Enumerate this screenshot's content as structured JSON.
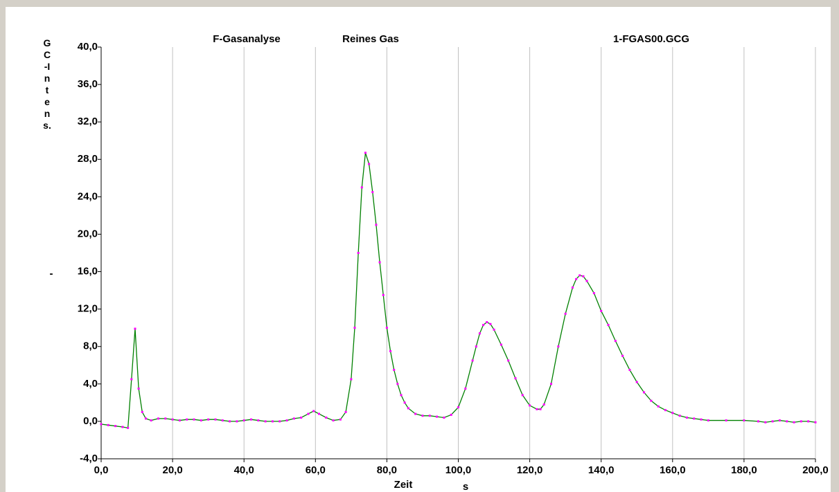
{
  "chart_data": {
    "type": "line",
    "title": "F-Gasanalyse",
    "subtitle": "Reines Gas",
    "file": "1-FGAS00.GCG",
    "y_label": "GC-Intens.",
    "y_unit": "-",
    "x_label": "Zeit",
    "x_unit": "s",
    "color": "#008000",
    "marker_color": "#ff00ff",
    "grid": "vertical",
    "xlim": [
      0,
      200
    ],
    "ylim": [
      -4,
      40
    ],
    "xticks": [
      {
        "value": 0,
        "label": "0,0"
      },
      {
        "value": 20,
        "label": "20,0"
      },
      {
        "value": 40,
        "label": "40,0"
      },
      {
        "value": 60,
        "label": "60,0"
      },
      {
        "value": 80,
        "label": "80,0"
      },
      {
        "value": 100,
        "label": "100,0"
      },
      {
        "value": 120,
        "label": "120,0"
      },
      {
        "value": 140,
        "label": "140,0"
      },
      {
        "value": 160,
        "label": "160,0"
      },
      {
        "value": 180,
        "label": "180,0"
      },
      {
        "value": 200,
        "label": "200,0"
      }
    ],
    "yticks": [
      {
        "value": -4,
        "label": "-4,0"
      },
      {
        "value": 0,
        "label": "0,0"
      },
      {
        "value": 4,
        "label": "4,0"
      },
      {
        "value": 8,
        "label": "8,0"
      },
      {
        "value": 12,
        "label": "12,0"
      },
      {
        "value": 16,
        "label": "16,0"
      },
      {
        "value": 20,
        "label": "20,0"
      },
      {
        "value": 24,
        "label": "24,0"
      },
      {
        "value": 28,
        "label": "28,0"
      },
      {
        "value": 32,
        "label": "32,0"
      },
      {
        "value": 36,
        "label": "36,0"
      },
      {
        "value": 40,
        "label": "40,0"
      }
    ],
    "x": [
      0,
      2,
      4,
      6,
      7.5,
      8.5,
      9.5,
      10.5,
      11.5,
      12.5,
      14,
      16,
      18,
      20,
      22,
      24,
      26,
      28,
      30,
      32,
      34,
      36,
      38,
      40,
      42,
      44,
      46,
      48,
      50,
      52,
      54,
      56,
      58,
      59.5,
      61,
      63,
      65,
      67,
      68.5,
      70,
      71,
      72,
      73,
      74,
      75,
      76,
      77,
      78,
      79,
      80,
      81,
      82,
      83,
      84,
      85,
      86,
      88,
      90,
      92,
      94,
      96,
      98,
      100,
      102,
      104,
      105,
      106,
      107,
      108,
      109,
      110,
      112,
      114,
      116,
      118,
      120,
      122,
      123,
      124,
      126,
      128,
      130,
      132,
      133,
      134,
      135,
      136,
      138,
      140,
      142,
      144,
      146,
      148,
      150,
      152,
      154,
      156,
      158,
      160,
      162,
      164,
      166,
      168,
      170,
      175,
      180,
      184,
      186,
      188,
      190,
      192,
      194,
      196,
      198,
      200
    ],
    "values": [
      -0.3,
      -0.4,
      -0.5,
      -0.6,
      -0.7,
      4.5,
      9.9,
      3.5,
      1.0,
      0.3,
      0.1,
      0.3,
      0.3,
      0.2,
      0.1,
      0.2,
      0.2,
      0.1,
      0.2,
      0.2,
      0.1,
      0.0,
      0.0,
      0.1,
      0.2,
      0.1,
      0.0,
      0.0,
      0.0,
      0.1,
      0.3,
      0.4,
      0.8,
      1.1,
      0.8,
      0.4,
      0.1,
      0.2,
      1.0,
      4.5,
      10,
      18,
      25,
      28.7,
      27.5,
      24.5,
      21,
      17,
      13.5,
      10,
      7.5,
      5.5,
      4.0,
      2.8,
      2.0,
      1.4,
      0.8,
      0.6,
      0.6,
      0.5,
      0.4,
      0.7,
      1.5,
      3.5,
      6.5,
      8.0,
      9.4,
      10.3,
      10.6,
      10.4,
      9.8,
      8.2,
      6.5,
      4.6,
      2.8,
      1.7,
      1.3,
      1.3,
      1.8,
      4.0,
      8.0,
      11.5,
      14.3,
      15.2,
      15.6,
      15.5,
      15.0,
      13.7,
      11.8,
      10.3,
      8.6,
      7.0,
      5.5,
      4.2,
      3.1,
      2.2,
      1.6,
      1.2,
      0.9,
      0.6,
      0.4,
      0.3,
      0.2,
      0.1,
      0.1,
      0.1,
      0.0,
      -0.1,
      0.0,
      0.1,
      0.0,
      -0.1,
      0.0,
      0.0,
      -0.1
    ]
  }
}
